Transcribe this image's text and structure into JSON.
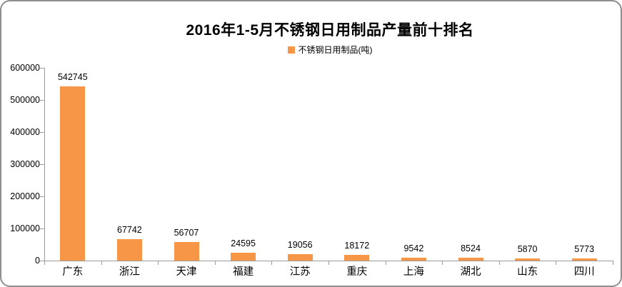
{
  "chart_data": {
    "type": "bar",
    "title": "2016年1-5月不锈钢日用制品产量前十排名",
    "legend_label": "不锈钢日用制品(吨)",
    "legend_position": "top",
    "categories": [
      "广东",
      "浙江",
      "天津",
      "福建",
      "江苏",
      "重庆",
      "上海",
      "湖北",
      "山东",
      "四川"
    ],
    "series": [
      {
        "name": "不锈钢日用制品(吨)",
        "values": [
          542745,
          67742,
          56707,
          24595,
          19056,
          18172,
          9542,
          8524,
          5870,
          5773
        ]
      }
    ],
    "data_labels": [
      542745,
      67742,
      56707,
      24595,
      19056,
      18172,
      9542,
      8524,
      5870,
      5773
    ],
    "xlabel": "",
    "ylabel": "",
    "ylim": [
      0,
      600000
    ],
    "yticks": [
      0,
      100000,
      200000,
      300000,
      400000,
      500000,
      600000
    ],
    "grid": false,
    "bar_color": "#F79646",
    "axis_color": "#9C9C9C",
    "text_color": "#000000",
    "frame_border_color": "#8E8E8E",
    "background_color": "#FFFFFF"
  }
}
